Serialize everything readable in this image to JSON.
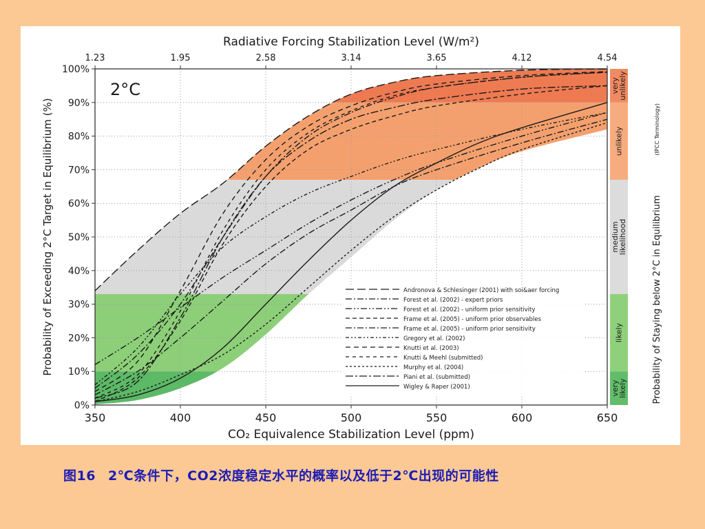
{
  "caption": {
    "figure_number": "图16",
    "text": "2℃条件下，CO2浓度稳定水平的概率以及低于2℃出现的可能性"
  },
  "chart_data": {
    "type": "line",
    "title": "Radiative Forcing Stabilization Level (W/m²)",
    "annotation": "2°C",
    "xlabel": "CO₂ Equivalence Stabilization Level (ppm)",
    "ylabel": "Probability of Exceeding 2°C Target in Equilibrium (%)",
    "right_axis_label": "Probability of Staying below 2°C in Equilibrium",
    "right_axis_note": "(IPCC Terminology)",
    "xlim": [
      350,
      650
    ],
    "ylim": [
      0,
      100
    ],
    "x_ticks": [
      350,
      400,
      450,
      500,
      550,
      600,
      650
    ],
    "y_ticks": [
      {
        "value": 0,
        "label": "0%"
      },
      {
        "value": 10,
        "label": "10%"
      },
      {
        "value": 20,
        "label": "20%"
      },
      {
        "value": 30,
        "label": "30%"
      },
      {
        "value": 40,
        "label": "40%"
      },
      {
        "value": 50,
        "label": "50%"
      },
      {
        "value": 60,
        "label": "60%"
      },
      {
        "value": 70,
        "label": "70%"
      },
      {
        "value": 80,
        "label": "80%"
      },
      {
        "value": 90,
        "label": "90%"
      },
      {
        "value": 100,
        "label": "100%"
      }
    ],
    "top_ticks": [
      {
        "x": 350,
        "label": "1.23"
      },
      {
        "x": 400,
        "label": "1.95"
      },
      {
        "x": 450,
        "label": "2.58"
      },
      {
        "x": 500,
        "label": "3.14"
      },
      {
        "x": 550,
        "label": "3.65"
      },
      {
        "x": 600,
        "label": "4.12"
      },
      {
        "x": 650,
        "label": "4.54"
      }
    ],
    "grid": true,
    "likelihood_bands": [
      {
        "label": "very unlikely",
        "lines": [
          "very",
          "unlikely"
        ],
        "from": 90,
        "to": 100,
        "color": "#f08a62",
        "region_color": "#ee7a52"
      },
      {
        "label": "unlikely",
        "lines": [
          "unlikely"
        ],
        "from": 67,
        "to": 90,
        "color": "#f6ac7e",
        "region_color": "#f4a06e"
      },
      {
        "label": "medium likelihood",
        "lines": [
          "medium",
          "likelihood"
        ],
        "from": 33,
        "to": 67,
        "color": "#dcdcdc",
        "region_color": "#dadada"
      },
      {
        "label": "likely",
        "lines": [
          "likely"
        ],
        "from": 10,
        "to": 33,
        "color": "#8fd17b",
        "region_color": "#8ccf78"
      },
      {
        "label": "very likely",
        "lines": [
          "very",
          "likely"
        ],
        "from": 0,
        "to": 10,
        "color": "#62bd6a",
        "region_color": "#5cb966"
      }
    ],
    "envelope": {
      "upper": [
        [
          350,
          34
        ],
        [
          375,
          46
        ],
        [
          400,
          57
        ],
        [
          425,
          66
        ],
        [
          450,
          77
        ],
        [
          475,
          86
        ],
        [
          500,
          92.5
        ],
        [
          525,
          96
        ],
        [
          550,
          98
        ],
        [
          600,
          99.6
        ],
        [
          650,
          100
        ]
      ],
      "lower": [
        [
          350,
          0.2
        ],
        [
          375,
          1.5
        ],
        [
          400,
          5
        ],
        [
          425,
          11
        ],
        [
          450,
          21
        ],
        [
          475,
          33
        ],
        [
          500,
          44
        ],
        [
          525,
          55
        ],
        [
          550,
          64
        ],
        [
          575,
          70.5
        ],
        [
          600,
          75.5
        ],
        [
          650,
          82
        ]
      ]
    },
    "legend_position": "bottom-right",
    "series": [
      {
        "name": "Andronova & Schlesinger (2001) with soi&aer forcing",
        "dash": "12,5",
        "points": [
          [
            350,
            34
          ],
          [
            375,
            46
          ],
          [
            400,
            57
          ],
          [
            425,
            66
          ],
          [
            450,
            77
          ],
          [
            475,
            86
          ],
          [
            500,
            92.5
          ],
          [
            525,
            96
          ],
          [
            550,
            98
          ],
          [
            600,
            99.6
          ],
          [
            650,
            100
          ]
        ]
      },
      {
        "name": "Forest et al. (2002) - expert priors",
        "dash": "9,3,2,3",
        "points": [
          [
            350,
            5
          ],
          [
            375,
            15
          ],
          [
            400,
            30
          ],
          [
            425,
            50
          ],
          [
            450,
            68
          ],
          [
            475,
            80
          ],
          [
            500,
            87
          ],
          [
            525,
            91.5
          ],
          [
            550,
            94.5
          ],
          [
            600,
            97.5
          ],
          [
            650,
            99
          ]
        ]
      },
      {
        "name": "Forest et al. (2002) - uniform prior sensitivity",
        "dash": "9,3,2,3,2,3",
        "points": [
          [
            350,
            12
          ],
          [
            375,
            20
          ],
          [
            400,
            29
          ],
          [
            425,
            38
          ],
          [
            450,
            46
          ],
          [
            475,
            54
          ],
          [
            500,
            61
          ],
          [
            525,
            67
          ],
          [
            550,
            72
          ],
          [
            600,
            80
          ],
          [
            650,
            87
          ]
        ]
      },
      {
        "name": "Frame et al. (2005) - uniform prior observables",
        "dash": "6,4",
        "points": [
          [
            350,
            1
          ],
          [
            375,
            8
          ],
          [
            400,
            25
          ],
          [
            425,
            48
          ],
          [
            450,
            65
          ],
          [
            475,
            76
          ],
          [
            500,
            82
          ],
          [
            525,
            86
          ],
          [
            550,
            89
          ],
          [
            600,
            92.5
          ],
          [
            650,
            95
          ]
        ]
      },
      {
        "name": "Frame et al. (2005) - uniform prior sensitivity",
        "dash": "9,3,2,3",
        "points": [
          [
            350,
            3
          ],
          [
            375,
            10
          ],
          [
            400,
            20
          ],
          [
            425,
            31
          ],
          [
            450,
            42
          ],
          [
            475,
            51
          ],
          [
            500,
            58
          ],
          [
            525,
            65
          ],
          [
            550,
            70
          ],
          [
            600,
            78
          ],
          [
            650,
            85
          ]
        ]
      },
      {
        "name": "Gregory et al. (2002)",
        "dash": "5,3,2,3,2,3",
        "points": [
          [
            350,
            6
          ],
          [
            375,
            17
          ],
          [
            400,
            33
          ],
          [
            425,
            47
          ],
          [
            450,
            56
          ],
          [
            475,
            63
          ],
          [
            500,
            68
          ],
          [
            525,
            72.5
          ],
          [
            550,
            76
          ],
          [
            600,
            82
          ],
          [
            650,
            87
          ]
        ]
      },
      {
        "name": "Knutti et al. (2003)",
        "dash": "7,5",
        "points": [
          [
            350,
            4
          ],
          [
            375,
            13
          ],
          [
            400,
            34
          ],
          [
            425,
            57
          ],
          [
            450,
            73
          ],
          [
            475,
            83
          ],
          [
            500,
            89
          ],
          [
            525,
            93
          ],
          [
            550,
            95.5
          ],
          [
            600,
            98
          ],
          [
            650,
            99.2
          ]
        ]
      },
      {
        "name": "Knutti & Meehl (submitted)",
        "dash": "5,5",
        "points": [
          [
            350,
            2
          ],
          [
            375,
            9
          ],
          [
            400,
            28
          ],
          [
            425,
            52
          ],
          [
            450,
            70
          ],
          [
            475,
            81
          ],
          [
            500,
            87.5
          ],
          [
            525,
            92
          ],
          [
            550,
            94.5
          ],
          [
            600,
            97.5
          ],
          [
            650,
            99
          ]
        ]
      },
      {
        "name": "Murphy et al. (2004)",
        "dash": "3,3",
        "points": [
          [
            350,
            1
          ],
          [
            375,
            4
          ],
          [
            400,
            9
          ],
          [
            425,
            15
          ],
          [
            450,
            24
          ],
          [
            475,
            35
          ],
          [
            500,
            46
          ],
          [
            525,
            56
          ],
          [
            550,
            64
          ],
          [
            575,
            70.5
          ],
          [
            600,
            76
          ],
          [
            650,
            84
          ]
        ]
      },
      {
        "name": "Piani et al. (submitted)",
        "dash": "11,3,3,3",
        "points": [
          [
            350,
            2
          ],
          [
            375,
            7
          ],
          [
            400,
            26
          ],
          [
            425,
            50
          ],
          [
            450,
            68
          ],
          [
            475,
            78.5
          ],
          [
            500,
            85
          ],
          [
            525,
            88.5
          ],
          [
            550,
            91
          ],
          [
            600,
            94
          ],
          [
            650,
            95
          ]
        ]
      },
      {
        "name": "Wigley & Raper (2001)",
        "dash": "none",
        "points": [
          [
            350,
            1
          ],
          [
            375,
            3
          ],
          [
            400,
            8
          ],
          [
            425,
            17
          ],
          [
            450,
            30
          ],
          [
            475,
            43
          ],
          [
            500,
            55
          ],
          [
            525,
            65
          ],
          [
            550,
            72
          ],
          [
            575,
            78
          ],
          [
            600,
            82.5
          ],
          [
            650,
            90
          ]
        ]
      }
    ]
  }
}
